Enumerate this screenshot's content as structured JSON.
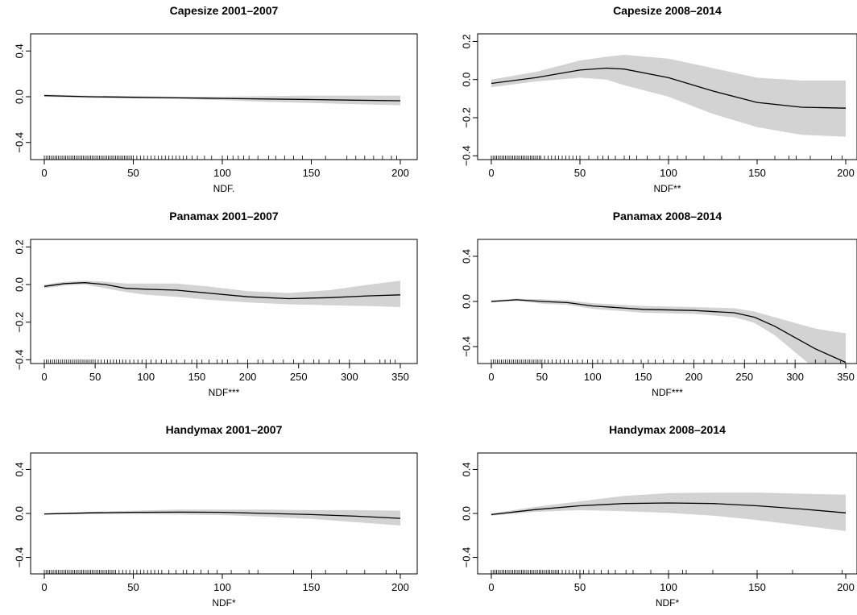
{
  "colors": {
    "band": "#d3d3d3",
    "line": "#000000",
    "frame": "#000000",
    "background": "#ffffff"
  },
  "chart_data": [
    {
      "type": "line",
      "title": "Capesize 2001–2007",
      "xlabel": "NDF.",
      "ylabel": "",
      "xlim": [
        0,
        200
      ],
      "ylim": [
        -0.55,
        0.55
      ],
      "xticks": [
        0,
        50,
        100,
        150,
        200
      ],
      "yticks": [
        -0.4,
        0.0,
        0.4
      ],
      "x": [
        0,
        25,
        50,
        75,
        100,
        125,
        150,
        175,
        200
      ],
      "fit": [
        0.01,
        0.0,
        -0.005,
        -0.01,
        -0.015,
        -0.02,
        -0.025,
        -0.03,
        -0.035
      ],
      "lower": [
        0.0,
        -0.01,
        -0.015,
        -0.02,
        -0.03,
        -0.045,
        -0.055,
        -0.065,
        -0.075
      ],
      "upper": [
        0.02,
        0.01,
        0.005,
        0.0,
        0.0,
        0.005,
        0.01,
        0.01,
        0.01
      ],
      "rug": [
        0,
        1,
        2,
        3,
        4,
        5,
        6,
        7,
        8,
        9,
        10,
        11,
        12,
        13,
        14,
        15,
        16,
        17,
        18,
        19,
        20,
        21,
        22,
        23,
        24,
        25,
        26,
        27,
        28,
        29,
        30,
        31,
        32,
        33,
        34,
        35,
        36,
        37,
        38,
        39,
        40,
        41,
        42,
        43,
        44,
        45,
        46,
        47,
        48,
        49,
        50,
        52,
        54,
        56,
        58,
        60,
        62,
        64,
        66,
        68,
        70,
        72,
        74,
        76,
        78,
        80,
        83,
        86,
        90,
        94,
        100,
        103,
        106,
        109,
        112,
        115,
        120,
        126,
        130,
        135,
        140,
        145,
        158,
        170,
        175,
        180,
        185,
        190,
        195,
        198
      ]
    },
    {
      "type": "line",
      "title": "Capesize 2008–2014",
      "xlabel": "NDF**",
      "ylabel": "",
      "xlim": [
        0,
        200
      ],
      "ylim": [
        -0.42,
        0.24
      ],
      "xticks": [
        0,
        50,
        100,
        150,
        200
      ],
      "yticks": [
        -0.4,
        -0.2,
        0.0,
        0.2
      ],
      "x": [
        0,
        25,
        50,
        65,
        75,
        100,
        125,
        150,
        175,
        200
      ],
      "fit": [
        -0.02,
        0.01,
        0.05,
        0.06,
        0.055,
        0.01,
        -0.06,
        -0.12,
        -0.145,
        -0.15
      ],
      "lower": [
        -0.04,
        -0.01,
        0.01,
        0.0,
        -0.03,
        -0.09,
        -0.18,
        -0.25,
        -0.29,
        -0.3
      ],
      "upper": [
        0.0,
        0.04,
        0.1,
        0.12,
        0.13,
        0.11,
        0.06,
        0.01,
        -0.005,
        -0.005
      ],
      "rug": [
        0,
        1,
        2,
        3,
        4,
        5,
        6,
        7,
        8,
        9,
        10,
        11,
        12,
        13,
        14,
        15,
        16,
        17,
        18,
        19,
        20,
        21,
        22,
        23,
        24,
        25,
        26,
        27,
        28,
        30,
        32,
        34,
        36,
        38,
        40,
        42,
        44,
        46,
        48,
        50,
        55,
        60,
        63,
        66,
        70,
        75,
        78,
        82,
        88,
        95,
        100,
        105,
        110,
        120,
        130,
        140,
        160,
        168,
        172,
        180,
        192,
        198
      ]
    },
    {
      "type": "line",
      "title": "Panamax 2001–2007",
      "xlabel": "NDF***",
      "ylabel": "",
      "xlim": [
        0,
        350
      ],
      "ylim": [
        -0.42,
        0.24
      ],
      "xticks": [
        0,
        50,
        100,
        150,
        200,
        250,
        300,
        350
      ],
      "yticks": [
        -0.4,
        -0.2,
        0.0,
        0.2
      ],
      "x": [
        0,
        20,
        40,
        60,
        80,
        100,
        130,
        160,
        200,
        240,
        280,
        320,
        350
      ],
      "fit": [
        -0.01,
        0.005,
        0.01,
        0.0,
        -0.02,
        -0.025,
        -0.03,
        -0.045,
        -0.065,
        -0.075,
        -0.07,
        -0.06,
        -0.055
      ],
      "lower": [
        -0.02,
        -0.005,
        0.0,
        -0.02,
        -0.04,
        -0.055,
        -0.065,
        -0.08,
        -0.095,
        -0.105,
        -0.11,
        -0.115,
        -0.12
      ],
      "upper": [
        0.0,
        0.015,
        0.02,
        0.015,
        0.005,
        0.005,
        0.005,
        -0.01,
        -0.035,
        -0.045,
        -0.03,
        0.0,
        0.02
      ],
      "rug": [
        0,
        2,
        4,
        6,
        8,
        10,
        12,
        14,
        16,
        18,
        20,
        22,
        24,
        26,
        28,
        30,
        32,
        34,
        36,
        38,
        40,
        42,
        44,
        46,
        48,
        50,
        53,
        56,
        59,
        62,
        65,
        68,
        71,
        74,
        77,
        80,
        84,
        88,
        92,
        96,
        100,
        105,
        110,
        115,
        120,
        125,
        130,
        138,
        145,
        150,
        155,
        162,
        170,
        175,
        180,
        190,
        200,
        210,
        215,
        225,
        235,
        245,
        255,
        265,
        270,
        280,
        290,
        300,
        315,
        330,
        335,
        340,
        345
      ]
    },
    {
      "type": "line",
      "title": "Panamax 2008–2014",
      "xlabel": "NDF***",
      "ylabel": "",
      "xlim": [
        0,
        350
      ],
      "ylim": [
        -0.55,
        0.55
      ],
      "xticks": [
        0,
        50,
        100,
        150,
        200,
        250,
        300,
        350
      ],
      "yticks": [
        -0.4,
        0.0,
        0.4
      ],
      "x": [
        0,
        25,
        50,
        75,
        100,
        150,
        200,
        240,
        260,
        280,
        300,
        320,
        340,
        350
      ],
      "fit": [
        0.0,
        0.015,
        0.0,
        -0.01,
        -0.04,
        -0.07,
        -0.08,
        -0.1,
        -0.14,
        -0.22,
        -0.32,
        -0.42,
        -0.5,
        -0.54
      ],
      "lower": [
        -0.01,
        0.005,
        -0.02,
        -0.03,
        -0.065,
        -0.1,
        -0.11,
        -0.14,
        -0.19,
        -0.3,
        -0.45,
        -0.6,
        -0.75,
        -0.82
      ],
      "upper": [
        0.01,
        0.025,
        0.02,
        0.01,
        -0.015,
        -0.04,
        -0.05,
        -0.06,
        -0.09,
        -0.14,
        -0.19,
        -0.24,
        -0.27,
        -0.28
      ],
      "rug": [
        0,
        2,
        4,
        6,
        8,
        10,
        12,
        14,
        16,
        18,
        20,
        22,
        24,
        26,
        28,
        30,
        32,
        34,
        36,
        38,
        40,
        42,
        44,
        46,
        48,
        50,
        53,
        56,
        60,
        64,
        68,
        72,
        76,
        80,
        85,
        90,
        95,
        100,
        105,
        110,
        118,
        125,
        130,
        140,
        148,
        155,
        162,
        170,
        180,
        190,
        200,
        210,
        218,
        228,
        240,
        250,
        262,
        270,
        280,
        292,
        300,
        320,
        330,
        345
      ]
    },
    {
      "type": "line",
      "title": "Handymax 2001–2007",
      "xlabel": "NDF*",
      "ylabel": "",
      "xlim": [
        0,
        200
      ],
      "ylim": [
        -0.55,
        0.55
      ],
      "xticks": [
        0,
        50,
        100,
        150,
        200
      ],
      "yticks": [
        -0.4,
        0.0,
        0.4
      ],
      "x": [
        0,
        25,
        50,
        75,
        100,
        125,
        150,
        175,
        200
      ],
      "fit": [
        -0.005,
        0.005,
        0.01,
        0.012,
        0.01,
        0.0,
        -0.01,
        -0.025,
        -0.045
      ],
      "lower": [
        -0.01,
        -0.005,
        -0.005,
        -0.01,
        -0.015,
        -0.03,
        -0.05,
        -0.08,
        -0.11
      ],
      "upper": [
        0.0,
        0.015,
        0.025,
        0.035,
        0.035,
        0.035,
        0.03,
        0.03,
        0.025
      ],
      "rug": [
        0,
        1,
        2,
        3,
        4,
        5,
        6,
        7,
        8,
        9,
        10,
        11,
        12,
        13,
        14,
        15,
        16,
        17,
        18,
        19,
        20,
        21,
        22,
        23,
        24,
        25,
        26,
        27,
        28,
        29,
        30,
        31,
        32,
        33,
        34,
        35,
        36,
        37,
        38,
        39,
        40,
        42,
        44,
        46,
        48,
        50,
        52,
        54,
        56,
        58,
        60,
        62,
        64,
        66,
        70,
        74,
        78,
        80,
        84,
        88,
        92,
        97,
        105,
        115,
        120,
        140,
        150,
        158,
        170,
        180,
        192,
        198
      ]
    },
    {
      "type": "line",
      "title": "Handymax 2008–2014",
      "xlabel": "NDF*",
      "ylabel": "",
      "xlim": [
        0,
        200
      ],
      "ylim": [
        -0.55,
        0.55
      ],
      "xticks": [
        0,
        50,
        100,
        150,
        200
      ],
      "yticks": [
        -0.4,
        0.0,
        0.4
      ],
      "x": [
        0,
        25,
        50,
        75,
        100,
        125,
        150,
        175,
        200
      ],
      "fit": [
        -0.01,
        0.035,
        0.07,
        0.09,
        0.095,
        0.09,
        0.07,
        0.04,
        0.005
      ],
      "lower": [
        -0.02,
        0.015,
        0.03,
        0.02,
        0.005,
        -0.02,
        -0.06,
        -0.11,
        -0.16
      ],
      "upper": [
        0.0,
        0.06,
        0.11,
        0.16,
        0.185,
        0.19,
        0.19,
        0.18,
        0.17
      ],
      "rug": [
        0,
        1,
        2,
        3,
        4,
        5,
        6,
        7,
        8,
        9,
        10,
        11,
        12,
        13,
        14,
        15,
        16,
        17,
        18,
        19,
        20,
        21,
        22,
        23,
        24,
        25,
        26,
        27,
        28,
        29,
        30,
        31,
        32,
        33,
        34,
        35,
        36,
        37,
        38,
        40,
        42,
        44,
        46,
        48,
        50,
        52,
        55,
        58,
        62,
        66,
        70,
        76,
        80,
        90,
        100,
        108,
        110,
        125,
        150,
        170,
        198
      ]
    }
  ]
}
